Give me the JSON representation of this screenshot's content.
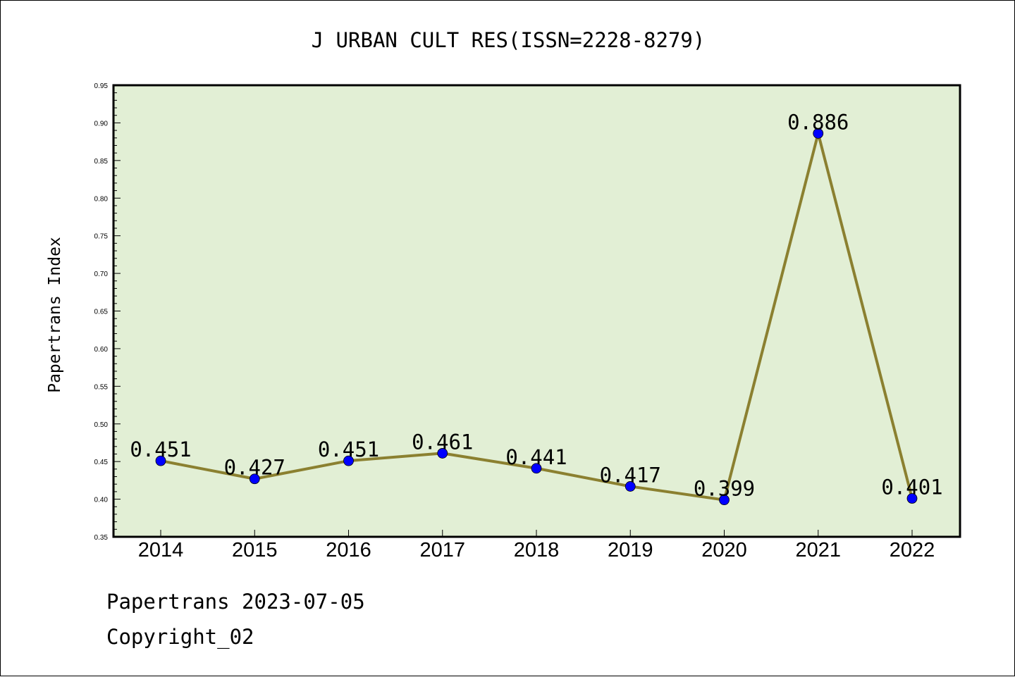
{
  "chart_data": {
    "type": "line",
    "title": "J URBAN CULT RES(ISSN=2228-8279)",
    "xlabel": "",
    "ylabel": "Papertrans Index",
    "categories": [
      "2014",
      "2015",
      "2016",
      "2017",
      "2018",
      "2019",
      "2020",
      "2021",
      "2022"
    ],
    "series": [
      {
        "values": [
          0.451,
          0.427,
          0.451,
          0.461,
          0.441,
          0.417,
          0.399,
          0.886,
          0.401
        ],
        "data_labels": [
          "0.451",
          "0.427",
          "0.451",
          "0.461",
          "0.441",
          "0.417",
          "0.399",
          "0.886",
          "0.401"
        ]
      }
    ],
    "ylim": [
      0.35,
      0.95
    ],
    "yticks": [
      "0.35",
      "0.40",
      "0.45",
      "0.50",
      "0.55",
      "0.60",
      "0.65",
      "0.70",
      "0.75",
      "0.80",
      "0.85",
      "0.90",
      "0.95"
    ],
    "grid": false,
    "legend": "none",
    "colors": {
      "plot_background": "#e2efd5",
      "line": "#8b8030",
      "marker": "#0000ff"
    }
  },
  "footer": {
    "source": "Papertrans 2023-07-05",
    "copyright": "Copyright_02"
  }
}
